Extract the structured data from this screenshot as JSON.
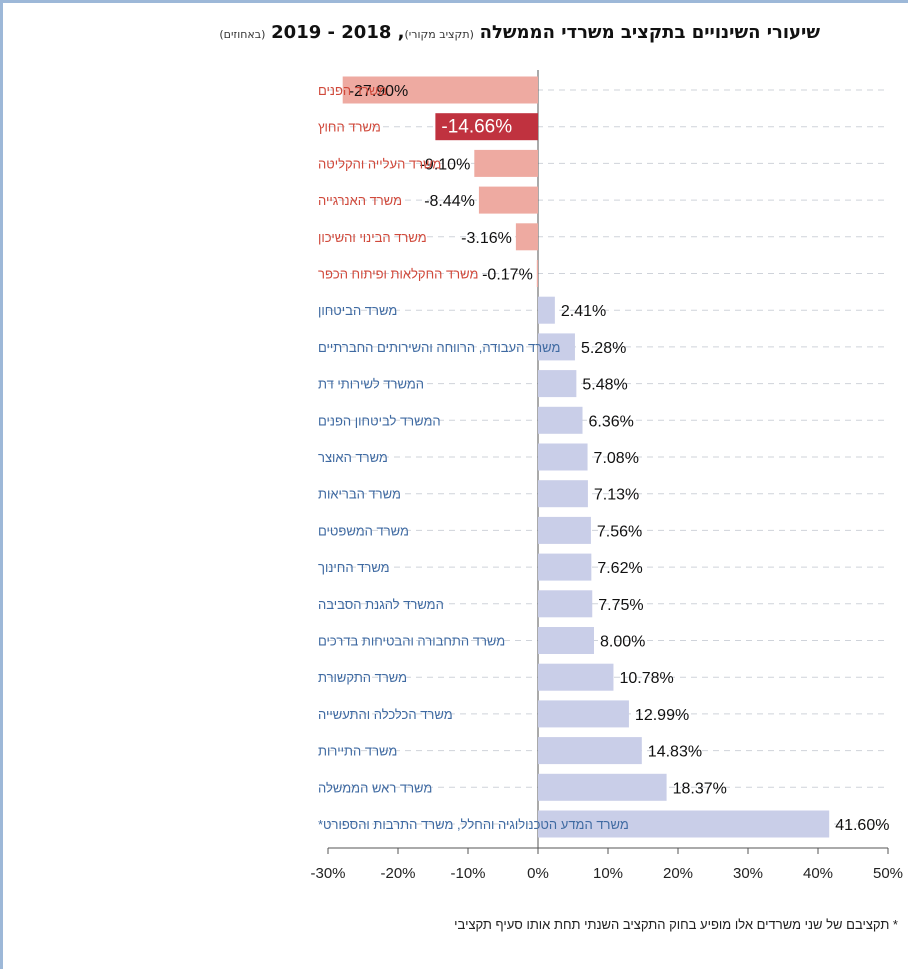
{
  "title": {
    "main": "שיעורי השינויים בתקציב משרדי הממשלה",
    "sub1": "(תקציב מקורי)",
    "years": ", 2018 - 2019",
    "sub2": "(באחוזים)"
  },
  "footnote": "* תקציבם של שני משרדים אלו מופיע בחוק התקציב השנתי תחת אותו סעיף תקציבי",
  "colors": {
    "negative_bar": "#eeaaa1",
    "highlight_bar": "#c0323f",
    "positive_bar": "#c9cee8",
    "negative_label": "#d0493b",
    "positive_label": "#3f6aa2",
    "highlight_text": "#ffffff"
  },
  "chart_data": {
    "type": "bar",
    "orientation": "horizontal",
    "xlim": [
      -30,
      50
    ],
    "xticks": [
      "-30%",
      "-20%",
      "-10%",
      "0%",
      "10%",
      "20%",
      "30%",
      "40%",
      "50%"
    ],
    "categories": [
      "משרד הפנים",
      "משרד החוץ",
      "משרד העלייה והקליטה",
      "משרד האנרגייה",
      "משרד הבינוי והשיכון",
      "משרד החקלאות ופיתוח הכפר",
      "משרד הביטחון",
      "משרד העבודה, הרווחה והשירותים החברתיים",
      "המשרד לשירותי דת",
      "המשרד לביטחון הפנים",
      "משרד האוצר",
      "משרד הבריאות",
      "משרד המשפטים",
      "משרד החינוך",
      "המשרד להגנת הסביבה",
      "משרד התחבורה והבטיחות בדרכים",
      "משרד התקשורת",
      "משרד הכלכלה והתעשייה",
      "משרד התיירות",
      "משרד ראש הממשלה",
      "משרד המדע הטכנולוגיה והחלל, משרד התרבות והספורט*"
    ],
    "values": [
      -27.9,
      -14.66,
      -9.1,
      -8.44,
      -3.16,
      -0.17,
      2.41,
      5.28,
      5.48,
      6.36,
      7.08,
      7.13,
      7.56,
      7.62,
      7.75,
      8.0,
      10.78,
      12.99,
      14.83,
      18.37,
      41.6
    ],
    "labels": [
      "-27.90%",
      "-14.66%",
      "-9.10%",
      "-8.44%",
      "-3.16%",
      "-0.17%",
      "2.41%",
      "5.28%",
      "5.48%",
      "6.36%",
      "7.08%",
      "7.13%",
      "7.56%",
      "7.62%",
      "7.75%",
      "8.00%",
      "10.78%",
      "12.99%",
      "14.83%",
      "18.37%",
      "41.60%"
    ],
    "highlight_index": 1,
    "grid": "horizontal dashed",
    "legend": "none"
  }
}
